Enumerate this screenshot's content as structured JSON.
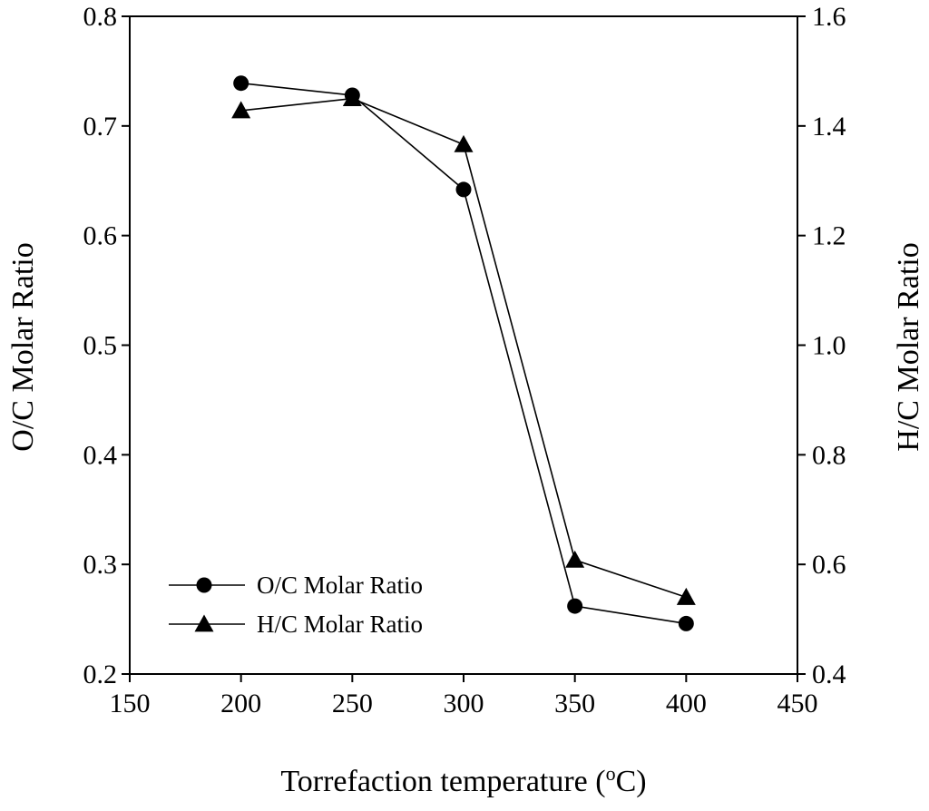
{
  "chart_data": {
    "type": "line",
    "title": "",
    "xlabel": "Torrefaction temperature (",
    "xlabel_sup": "o",
    "xlabel_suffix": "C)",
    "ylabel_left": "O/C Molar Ratio",
    "ylabel_right": "H/C Molar Ratio",
    "xlim": [
      150,
      450
    ],
    "ylim_left": [
      0.2,
      0.8
    ],
    "ylim_right": [
      0.4,
      1.6
    ],
    "x_ticks": [
      "150",
      "200",
      "250",
      "300",
      "350",
      "400",
      "450"
    ],
    "y_left_ticks": [
      "0.2",
      "0.3",
      "0.4",
      "0.5",
      "0.6",
      "0.7",
      "0.8"
    ],
    "y_right_ticks": [
      "0.4",
      "0.6",
      "0.8",
      "1.0",
      "1.2",
      "1.4",
      "1.6"
    ],
    "x": [
      200,
      250,
      300,
      350,
      400
    ],
    "series": [
      {
        "name": "O/C Molar Ratio",
        "axis": "left",
        "marker": "circle",
        "values": [
          0.739,
          0.728,
          0.642,
          0.262,
          0.246
        ]
      },
      {
        "name": "H/C Molar Ratio",
        "axis": "right",
        "marker": "triangle",
        "values": [
          1.428,
          1.45,
          1.366,
          0.608,
          0.54
        ]
      }
    ],
    "legend": {
      "position": "bottom-left",
      "entries": [
        "O/C Molar Ratio",
        "H/C Molar Ratio"
      ]
    },
    "grid": false,
    "colors": {
      "line": "#000000",
      "marker": "#000000",
      "background": "#ffffff"
    }
  }
}
